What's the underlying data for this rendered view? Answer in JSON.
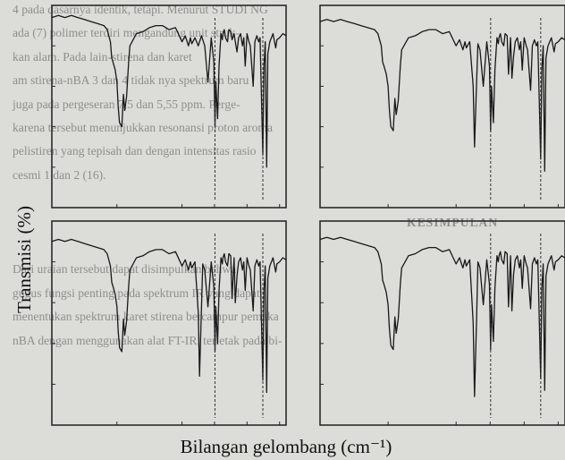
{
  "background_text": [
    "4 pada dasarnya identik, tetapi. Menurut STUDI NG",
    "ada (7) polimer terdiri mengandung unit struk-",
    "kan alam. Pada lain-stirena dan karet",
    "am stirena-nBA 3 dan 4 tidak nya spektrum baru",
    "juga pada pergeseran 7,5 dan 5,55 ppm. Perge-",
    "karena tersebut menunjukkan resonansi proton aroma",
    "pelistiren yang tepisah dan dengan intensitas rasio",
    "cesmi 1 dan 2 (16).",
    "",
    "KESIMPULAN",
    "",
    "Dari uraian tersebut dapat disimpulkan bahwa",
    "gugus fungsi penting pada spektrum IR yang dapat",
    "menentukan spektrum karet stirena bercampur pemaka",
    "nBA dengan menggunakan alat FT-IR, terletak pada bi-"
  ],
  "ylabel": "Transmisi (%)",
  "xlabel": "Bilangan gelombang (cm⁻¹)",
  "colors": {
    "line": "#181818",
    "frame": "#2a2a2a",
    "paper": "#dcdcd8",
    "bg_text": "#8e8e8c"
  },
  "chart_data": {
    "type": "line",
    "layout": "2x2 grid of IR spectra",
    "x_axis": "Bilangan gelombang (cm⁻¹)",
    "y_axis": "Transmisi (%)",
    "xlim": [
      4000,
      400
    ],
    "ylim": [
      0,
      100
    ],
    "panels": [
      {
        "name": "",
        "x": [
          4000,
          3900,
          3800,
          3700,
          3600,
          3500,
          3400,
          3300,
          3200,
          3150,
          3100,
          3080,
          3060,
          3026,
          3000,
          2980,
          2960,
          2924,
          2900,
          2880,
          2851,
          2820,
          2800,
          2700,
          2600,
          2500,
          2400,
          2300,
          2200,
          2100,
          2000,
          1950,
          1900,
          1870,
          1850,
          1800,
          1750,
          1730,
          1700,
          1680,
          1650,
          1601,
          1580,
          1550,
          1510,
          1493,
          1480,
          1452,
          1430,
          1400,
          1380,
          1370,
          1350,
          1330,
          1300,
          1280,
          1250,
          1230,
          1200,
          1180,
          1155,
          1130,
          1100,
          1070,
          1050,
          1028,
          1000,
          970,
          950,
          906,
          880,
          850,
          820,
          800,
          757,
          740,
          720,
          698,
          680,
          650,
          600,
          560,
          540,
          500,
          450,
          400
        ],
        "y": [
          94,
          95,
          94,
          95,
          94,
          93,
          92,
          91,
          90,
          88,
          82,
          74,
          72,
          68,
          62,
          50,
          42,
          40,
          56,
          48,
          55,
          72,
          80,
          86,
          87,
          89,
          90,
          90,
          88,
          89,
          82,
          85,
          80,
          84,
          81,
          84,
          80,
          82,
          85,
          83,
          80,
          62,
          71,
          84,
          72,
          40,
          62,
          44,
          70,
          86,
          83,
          86,
          88,
          84,
          82,
          88,
          87,
          83,
          86,
          82,
          77,
          84,
          86,
          80,
          84,
          70,
          86,
          82,
          80,
          60,
          82,
          85,
          82,
          84,
          26,
          70,
          82,
          20,
          76,
          82,
          86,
          79,
          83,
          84,
          86,
          85
        ]
      },
      {
        "name": "",
        "x": [
          4000,
          3900,
          3800,
          3700,
          3600,
          3500,
          3400,
          3300,
          3200,
          3150,
          3100,
          3080,
          3060,
          3026,
          3000,
          2980,
          2960,
          2924,
          2900,
          2880,
          2851,
          2820,
          2800,
          2700,
          2600,
          2500,
          2400,
          2300,
          2200,
          2100,
          2000,
          1950,
          1900,
          1870,
          1850,
          1800,
          1750,
          1730,
          1700,
          1680,
          1650,
          1601,
          1580,
          1550,
          1510,
          1493,
          1480,
          1452,
          1430,
          1400,
          1380,
          1370,
          1350,
          1330,
          1300,
          1280,
          1250,
          1230,
          1200,
          1180,
          1155,
          1130,
          1100,
          1070,
          1050,
          1028,
          1000,
          970,
          950,
          906,
          880,
          850,
          820,
          800,
          757,
          740,
          720,
          698,
          680,
          650,
          600,
          560,
          540,
          500,
          450,
          400
        ],
        "y": [
          92,
          93,
          92,
          93,
          92,
          91,
          90,
          89,
          88,
          86,
          80,
          72,
          70,
          66,
          60,
          48,
          40,
          38,
          54,
          46,
          53,
          70,
          78,
          84,
          85,
          87,
          88,
          88,
          86,
          87,
          80,
          83,
          78,
          82,
          79,
          82,
          60,
          30,
          62,
          81,
          78,
          60,
          69,
          82,
          70,
          38,
          60,
          42,
          68,
          84,
          81,
          84,
          86,
          82,
          80,
          86,
          85,
          66,
          84,
          64,
          75,
          82,
          84,
          78,
          82,
          68,
          84,
          80,
          78,
          58,
          80,
          83,
          80,
          82,
          24,
          68,
          80,
          18,
          74,
          80,
          84,
          77,
          81,
          82,
          84,
          83
        ]
      },
      {
        "name": "",
        "x": [
          4000,
          3900,
          3800,
          3700,
          3600,
          3500,
          3400,
          3300,
          3200,
          3150,
          3100,
          3080,
          3060,
          3026,
          3000,
          2980,
          2960,
          2924,
          2900,
          2880,
          2851,
          2820,
          2800,
          2700,
          2600,
          2500,
          2400,
          2300,
          2200,
          2100,
          2000,
          1950,
          1900,
          1870,
          1850,
          1800,
          1750,
          1730,
          1700,
          1680,
          1650,
          1601,
          1580,
          1550,
          1510,
          1493,
          1480,
          1452,
          1430,
          1400,
          1380,
          1370,
          1350,
          1330,
          1300,
          1280,
          1250,
          1230,
          1200,
          1180,
          1155,
          1130,
          1100,
          1070,
          1050,
          1028,
          1000,
          970,
          950,
          906,
          880,
          850,
          820,
          800,
          757,
          740,
          720,
          698,
          680,
          650,
          600,
          560,
          540,
          500,
          450,
          400
        ],
        "y": [
          90,
          91,
          90,
          91,
          90,
          89,
          88,
          87,
          86,
          84,
          78,
          70,
          68,
          64,
          58,
          46,
          38,
          36,
          52,
          44,
          51,
          68,
          76,
          82,
          83,
          85,
          86,
          86,
          84,
          85,
          78,
          81,
          76,
          80,
          77,
          80,
          55,
          24,
          58,
          79,
          76,
          58,
          67,
          80,
          68,
          36,
          58,
          40,
          66,
          82,
          79,
          82,
          84,
          80,
          78,
          84,
          83,
          62,
          82,
          60,
          73,
          80,
          82,
          76,
          80,
          66,
          82,
          78,
          76,
          56,
          78,
          81,
          78,
          80,
          22,
          66,
          78,
          16,
          72,
          78,
          82,
          75,
          79,
          80,
          82,
          81
        ]
      },
      {
        "name": "",
        "x": [
          4000,
          3900,
          3800,
          3700,
          3600,
          3500,
          3400,
          3300,
          3200,
          3150,
          3100,
          3080,
          3060,
          3026,
          3000,
          2980,
          2960,
          2924,
          2900,
          2880,
          2851,
          2820,
          2800,
          2700,
          2600,
          2500,
          2400,
          2300,
          2200,
          2100,
          2000,
          1950,
          1900,
          1870,
          1850,
          1800,
          1750,
          1730,
          1700,
          1680,
          1650,
          1601,
          1580,
          1550,
          1510,
          1493,
          1480,
          1452,
          1430,
          1400,
          1380,
          1370,
          1350,
          1330,
          1300,
          1280,
          1250,
          1230,
          1200,
          1180,
          1155,
          1130,
          1100,
          1070,
          1050,
          1028,
          1000,
          970,
          950,
          906,
          880,
          850,
          820,
          800,
          757,
          740,
          720,
          698,
          680,
          650,
          600,
          560,
          540,
          500,
          450,
          400
        ],
        "y": [
          91,
          92,
          91,
          92,
          91,
          90,
          89,
          88,
          87,
          85,
          79,
          71,
          69,
          65,
          59,
          47,
          39,
          37,
          53,
          45,
          52,
          69,
          77,
          83,
          84,
          86,
          87,
          87,
          85,
          86,
          79,
          82,
          77,
          81,
          78,
          81,
          50,
          14,
          52,
          80,
          77,
          59,
          68,
          81,
          69,
          37,
          59,
          41,
          67,
          83,
          80,
          83,
          85,
          81,
          79,
          85,
          84,
          58,
          83,
          56,
          74,
          81,
          83,
          77,
          81,
          67,
          83,
          79,
          77,
          57,
          79,
          82,
          79,
          81,
          23,
          67,
          79,
          17,
          73,
          79,
          83,
          76,
          80,
          81,
          83,
          82
        ]
      }
    ]
  }
}
